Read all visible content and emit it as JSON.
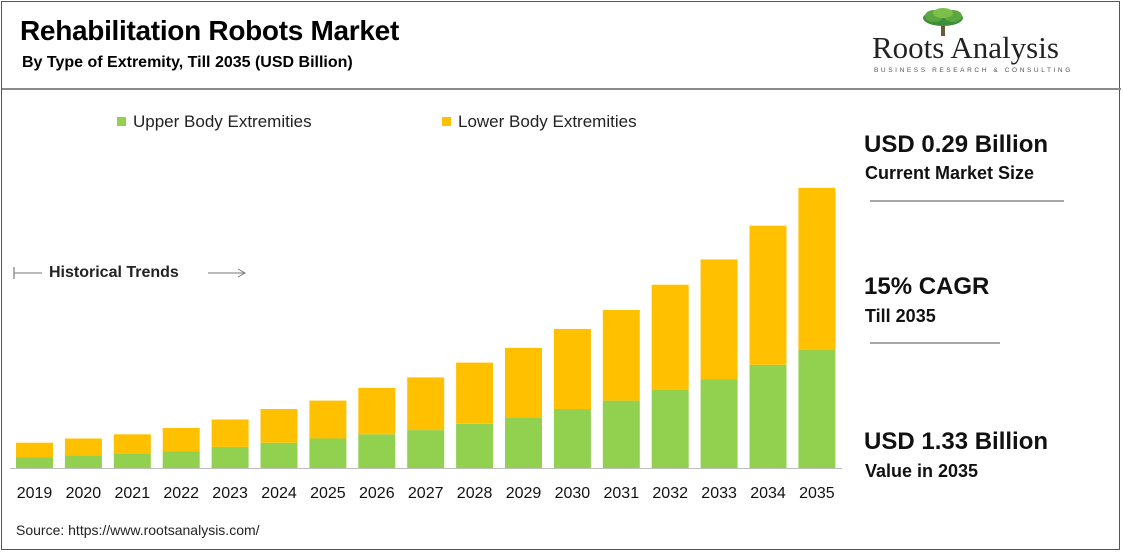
{
  "header": {
    "title": "Rehabilitation Robots Market",
    "subtitle": "By Type of Extremity, Till 2035 (USD Billion)"
  },
  "logo": {
    "name": "Roots Analysis",
    "tagline": "BUSINESS RESEARCH & CONSULTING"
  },
  "annotation": {
    "historical": "Historical Trends"
  },
  "stats": [
    {
      "value": "USD 0.29 Billion",
      "label": "Current Market Size"
    },
    {
      "value": "15% CAGR",
      "label": "Till 2035"
    },
    {
      "value": "USD 1.33 Billion",
      "label": "Value in 2035"
    }
  ],
  "source": "Source: https://www.rootsanalysis.com/",
  "colors": {
    "upper": "#92d050",
    "lower": "#ffc000"
  },
  "chart_data": {
    "type": "bar",
    "stacked": true,
    "categories": [
      "2019",
      "2020",
      "2021",
      "2022",
      "2023",
      "2024",
      "2025",
      "2026",
      "2027",
      "2028",
      "2029",
      "2030",
      "2031",
      "2032",
      "2033",
      "2034",
      "2035"
    ],
    "series": [
      {
        "name": "Upper Body Extremities",
        "values": [
          0.05,
          0.06,
          0.07,
          0.08,
          0.1,
          0.12,
          0.14,
          0.16,
          0.18,
          0.21,
          0.24,
          0.28,
          0.32,
          0.37,
          0.42,
          0.49,
          0.56
        ]
      },
      {
        "name": "Lower Body Extremities",
        "values": [
          0.07,
          0.08,
          0.09,
          0.11,
          0.13,
          0.16,
          0.18,
          0.22,
          0.25,
          0.29,
          0.33,
          0.38,
          0.43,
          0.5,
          0.57,
          0.66,
          0.77
        ]
      }
    ],
    "ylim": [
      0,
      1.4
    ],
    "legend": "top",
    "grid": false
  }
}
